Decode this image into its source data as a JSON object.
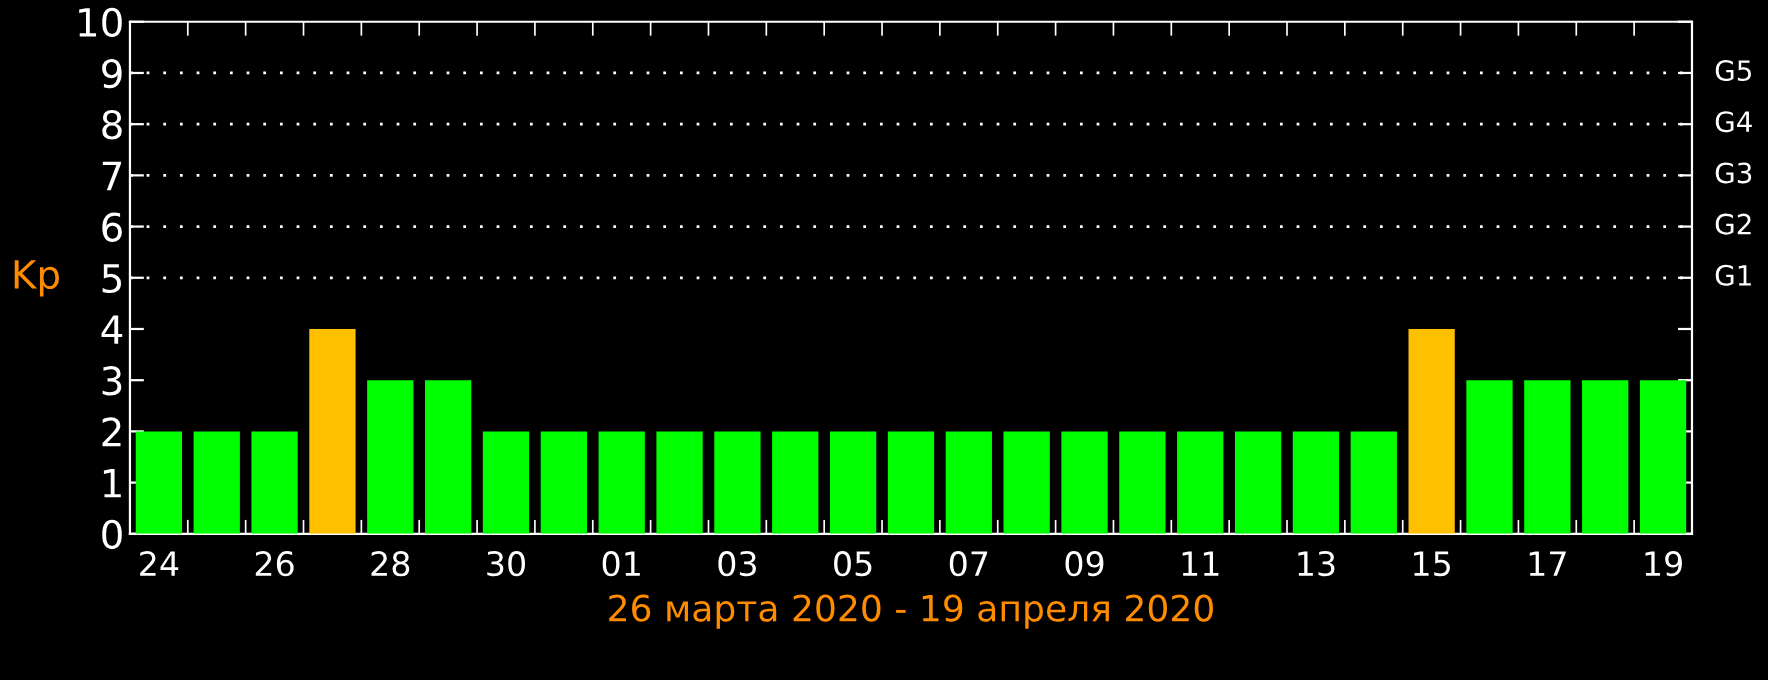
{
  "chart_data": {
    "type": "bar",
    "xlabel": "26 марта 2020 - 19 апреля 2020",
    "ylabel": "Kp",
    "categories": [
      "24",
      null,
      "26",
      null,
      "28",
      null,
      "30",
      null,
      "01",
      null,
      "03",
      null,
      "05",
      null,
      "07",
      null,
      "09",
      null,
      "11",
      null,
      "13",
      null,
      "15",
      null,
      "17",
      null,
      "19"
    ],
    "values": [
      2,
      2,
      2,
      4,
      3,
      3,
      2,
      2,
      2,
      2,
      2,
      2,
      2,
      2,
      2,
      2,
      2,
      2,
      2,
      2,
      2,
      2,
      4,
      3,
      3,
      3,
      3
    ],
    "colors": [
      "#00ff00",
      "#00ff00",
      "#00ff00",
      "#ffc000",
      "#00ff00",
      "#00ff00",
      "#00ff00",
      "#00ff00",
      "#00ff00",
      "#00ff00",
      "#00ff00",
      "#00ff00",
      "#00ff00",
      "#00ff00",
      "#00ff00",
      "#00ff00",
      "#00ff00",
      "#00ff00",
      "#00ff00",
      "#00ff00",
      "#00ff00",
      "#00ff00",
      "#ffc000",
      "#00ff00",
      "#00ff00",
      "#00ff00",
      "#00ff00"
    ],
    "ylim": [
      0,
      10
    ],
    "yticks": [
      0,
      1,
      2,
      3,
      4,
      5,
      6,
      7,
      8,
      9,
      10
    ],
    "ref_lines": [
      {
        "axis": "y",
        "value": 5,
        "label": "G1",
        "color": "#ffffff",
        "line_style": "dotted"
      },
      {
        "axis": "y",
        "value": 6,
        "label": "G2",
        "color": "#ffffff",
        "line_style": "dotted"
      },
      {
        "axis": "y",
        "value": 7,
        "label": "G3",
        "color": "#ffffff",
        "line_style": "dotted"
      },
      {
        "axis": "y",
        "value": 8,
        "label": "G4",
        "color": "#ffffff",
        "line_style": "dotted"
      },
      {
        "axis": "y",
        "value": 9,
        "label": "G5",
        "color": "#ffffff",
        "line_style": "dotted"
      }
    ]
  }
}
